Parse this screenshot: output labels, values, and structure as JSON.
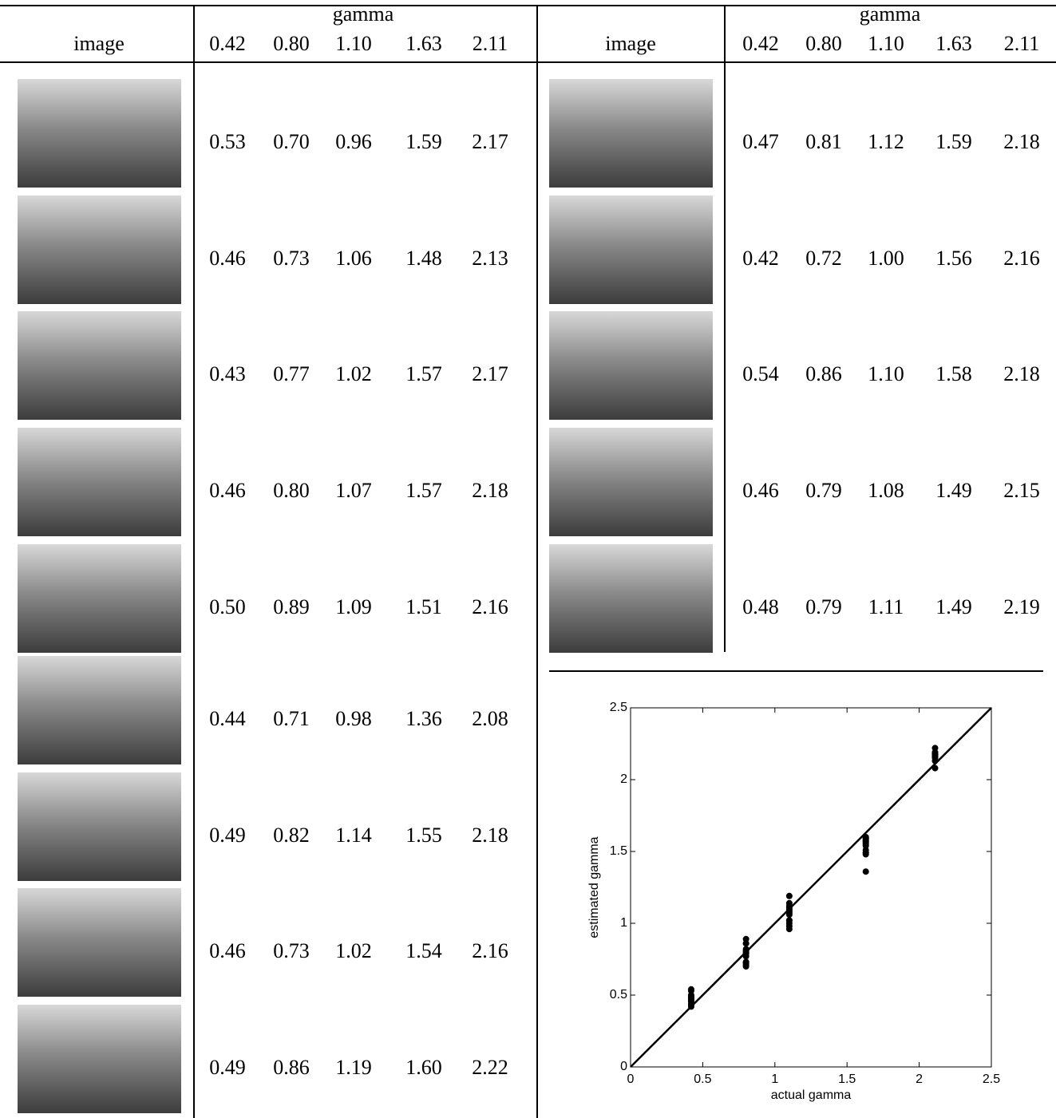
{
  "left_table": {
    "image_header": "image",
    "gamma_header": "gamma",
    "levels": [
      "0.42",
      "0.80",
      "1.10",
      "1.63",
      "2.11"
    ],
    "rows": [
      [
        "0.53",
        "0.70",
        "0.96",
        "1.59",
        "2.17"
      ],
      [
        "0.46",
        "0.73",
        "1.06",
        "1.48",
        "2.13"
      ],
      [
        "0.43",
        "0.77",
        "1.02",
        "1.57",
        "2.17"
      ],
      [
        "0.46",
        "0.80",
        "1.07",
        "1.57",
        "2.18"
      ],
      [
        "0.50",
        "0.89",
        "1.09",
        "1.51",
        "2.16"
      ],
      [
        "0.44",
        "0.71",
        "0.98",
        "1.36",
        "2.08"
      ],
      [
        "0.49",
        "0.82",
        "1.14",
        "1.55",
        "2.18"
      ],
      [
        "0.46",
        "0.73",
        "1.02",
        "1.54",
        "2.16"
      ],
      [
        "0.49",
        "0.86",
        "1.19",
        "1.60",
        "2.22"
      ]
    ]
  },
  "right_table": {
    "image_header": "image",
    "gamma_header": "gamma",
    "levels": [
      "0.42",
      "0.80",
      "1.10",
      "1.63",
      "2.11"
    ],
    "rows": [
      [
        "0.47",
        "0.81",
        "1.12",
        "1.59",
        "2.18"
      ],
      [
        "0.42",
        "0.72",
        "1.00",
        "1.56",
        "2.16"
      ],
      [
        "0.54",
        "0.86",
        "1.10",
        "1.58",
        "2.18"
      ],
      [
        "0.46",
        "0.79",
        "1.08",
        "1.49",
        "2.15"
      ],
      [
        "0.48",
        "0.79",
        "1.11",
        "1.49",
        "2.19"
      ]
    ]
  },
  "chart_data": {
    "type": "scatter",
    "xlabel": "actual gamma",
    "ylabel": "estimated gamma",
    "color": "#000000",
    "xlim": [
      0,
      2.5
    ],
    "ylim": [
      0,
      2.5
    ],
    "xticks": [
      0,
      0.5,
      1,
      1.5,
      2,
      2.5
    ],
    "yticks": [
      0,
      0.5,
      1,
      1.5,
      2,
      2.5
    ],
    "x": [
      0.42,
      0.8,
      1.1,
      1.63,
      2.11,
      0.42,
      0.8,
      1.1,
      1.63,
      2.11,
      0.42,
      0.8,
      1.1,
      1.63,
      2.11,
      0.42,
      0.8,
      1.1,
      1.63,
      2.11,
      0.42,
      0.8,
      1.1,
      1.63,
      2.11,
      0.42,
      0.8,
      1.1,
      1.63,
      2.11,
      0.42,
      0.8,
      1.1,
      1.63,
      2.11,
      0.42,
      0.8,
      1.1,
      1.63,
      2.11,
      0.42,
      0.8,
      1.1,
      1.63,
      2.11,
      0.42,
      0.8,
      1.1,
      1.63,
      2.11,
      0.42,
      0.8,
      1.1,
      1.63,
      2.11,
      0.42,
      0.8,
      1.1,
      1.63,
      2.11,
      0.42,
      0.8,
      1.1,
      1.63,
      2.11,
      0.42,
      0.8,
      1.1,
      1.63,
      2.11
    ],
    "y": [
      0.53,
      0.7,
      0.96,
      1.59,
      2.17,
      0.46,
      0.73,
      1.06,
      1.48,
      2.13,
      0.43,
      0.77,
      1.02,
      1.57,
      2.17,
      0.46,
      0.8,
      1.07,
      1.57,
      2.18,
      0.5,
      0.89,
      1.09,
      1.51,
      2.16,
      0.44,
      0.71,
      0.98,
      1.36,
      2.08,
      0.49,
      0.82,
      1.14,
      1.55,
      2.18,
      0.46,
      0.73,
      1.02,
      1.54,
      2.16,
      0.49,
      0.86,
      1.19,
      1.6,
      2.22,
      0.47,
      0.81,
      1.12,
      1.59,
      2.18,
      0.42,
      0.72,
      1.0,
      1.56,
      2.16,
      0.54,
      0.86,
      1.1,
      1.58,
      2.18,
      0.46,
      0.79,
      1.08,
      1.49,
      2.15,
      0.48,
      0.79,
      1.11,
      1.49,
      2.19
    ]
  }
}
